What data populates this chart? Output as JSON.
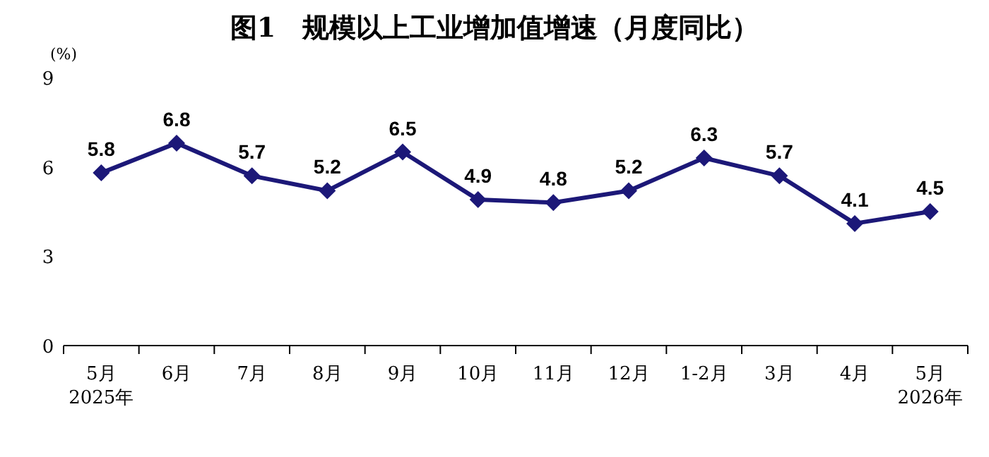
{
  "chart_data": {
    "type": "line",
    "title": "图1　规模以上工业增加值增速（月度同比）",
    "ylabel": "(%)",
    "categories": [
      "5月\n2025年",
      "6月",
      "7月",
      "8月",
      "9月",
      "10月",
      "11月",
      "12月",
      "1-2月",
      "3月",
      "4月",
      "5月\n2026年"
    ],
    "series": [
      {
        "color": "#1c1878",
        "values": [
          5.8,
          6.8,
          5.7,
          5.2,
          6.5,
          4.9,
          4.8,
          5.2,
          6.3,
          5.7,
          4.1,
          4.5
        ]
      }
    ],
    "ylim": [
      0,
      9
    ],
    "yticks": [
      0,
      3,
      6,
      9
    ],
    "marker": "diamond",
    "line_style": "solid",
    "data_labels": true,
    "grid": false
  }
}
